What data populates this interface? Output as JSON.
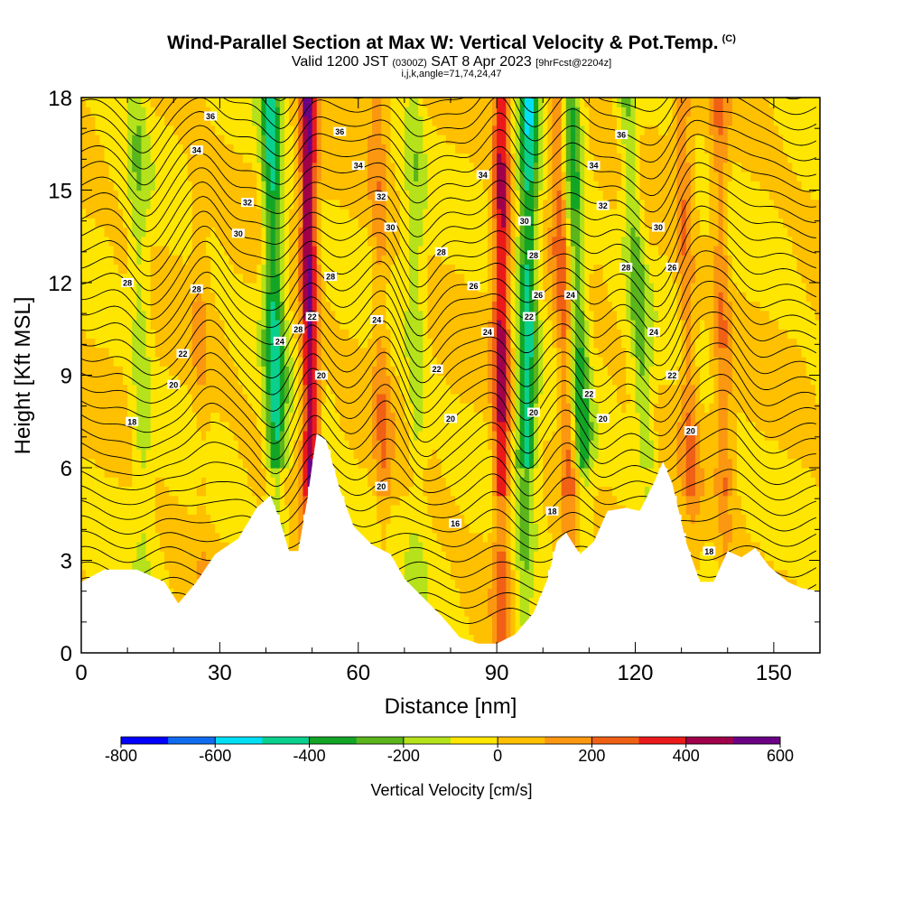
{
  "title": "Wind-Parallel Section at Max W: Vertical Velocity & Pot.Temp.",
  "copyright_mark": "(C)",
  "subtitle_main": "Valid 1200 JST",
  "subtitle_utc": "(0300Z)",
  "subtitle_date": "SAT 8 Apr 2023",
  "subtitle_fcst": "[9hrFcst@2204z]",
  "index_line": "i,j,k,angle=71,74,24,47",
  "chart_data": {
    "type": "heatmap",
    "xlabel": "Distance [nm]",
    "ylabel": "Height [Kft MSL]",
    "xlim": [
      0,
      160
    ],
    "ylim": [
      0,
      18
    ],
    "x_ticks": [
      0,
      30,
      60,
      90,
      120,
      150
    ],
    "y_ticks": [
      0,
      3,
      6,
      9,
      12,
      15,
      18
    ],
    "colorbar": {
      "label": "Vertical Velocity [cm/s]",
      "range": [
        -800,
        600
      ],
      "tick_values": [
        -800,
        -600,
        -400,
        -200,
        0,
        200,
        400,
        600
      ],
      "colors": [
        "#0000ff",
        "#0f6cf0",
        "#00dff5",
        "#0ad08e",
        "#13a526",
        "#5bb51c",
        "#b5e21a",
        "#ffe600",
        "#ffc000",
        "#fb9710",
        "#f06015",
        "#eb1a1a",
        "#a0004a",
        "#6b0085"
      ]
    },
    "updrafts": [
      {
        "x_base": 50,
        "x_top": 49,
        "w": 500
      },
      {
        "x_base": 91,
        "x_top": 91,
        "w": 420
      },
      {
        "x_base": 107,
        "x_top": 103,
        "w": 260
      },
      {
        "x_base": 66,
        "x_top": 64,
        "w": 150
      },
      {
        "x_base": 133,
        "x_top": 130,
        "w": 180
      },
      {
        "x_base": 140,
        "x_top": 138,
        "w": 180
      },
      {
        "x_base": 27,
        "x_top": 25,
        "w": 80
      }
    ],
    "downdrafts": [
      {
        "x_base": 43,
        "x_top": 41,
        "w": -420
      },
      {
        "x_base": 96,
        "x_top": 97,
        "w": -440
      },
      {
        "x_base": 110,
        "x_top": 106,
        "w": -320
      },
      {
        "x_base": 125,
        "x_top": 118,
        "w": -220
      },
      {
        "x_base": 73,
        "x_top": 72,
        "w": -150
      },
      {
        "x_base": 14,
        "x_top": 12,
        "w": -150
      }
    ],
    "terrain_height_kft": [
      {
        "x": 0,
        "h": 2.3
      },
      {
        "x": 5,
        "h": 2.7
      },
      {
        "x": 12,
        "h": 2.7
      },
      {
        "x": 18,
        "h": 2.3
      },
      {
        "x": 21,
        "h": 1.6
      },
      {
        "x": 25,
        "h": 2.3
      },
      {
        "x": 29,
        "h": 3.2
      },
      {
        "x": 34,
        "h": 3.7
      },
      {
        "x": 38,
        "h": 4.7
      },
      {
        "x": 41,
        "h": 5.1
      },
      {
        "x": 43,
        "h": 4.3
      },
      {
        "x": 45,
        "h": 3.3
      },
      {
        "x": 47,
        "h": 3.3
      },
      {
        "x": 49,
        "h": 5.0
      },
      {
        "x": 51,
        "h": 7.1
      },
      {
        "x": 53,
        "h": 6.9
      },
      {
        "x": 56,
        "h": 5.3
      },
      {
        "x": 59,
        "h": 4.1
      },
      {
        "x": 63,
        "h": 3.5
      },
      {
        "x": 67,
        "h": 3.2
      },
      {
        "x": 70,
        "h": 2.4
      },
      {
        "x": 74,
        "h": 1.8
      },
      {
        "x": 78,
        "h": 1.2
      },
      {
        "x": 82,
        "h": 0.5
      },
      {
        "x": 86,
        "h": 0.3
      },
      {
        "x": 90,
        "h": 0.3
      },
      {
        "x": 94,
        "h": 0.6
      },
      {
        "x": 98,
        "h": 1.3
      },
      {
        "x": 101,
        "h": 2.4
      },
      {
        "x": 103,
        "h": 3.6
      },
      {
        "x": 105,
        "h": 3.9
      },
      {
        "x": 108,
        "h": 3.2
      },
      {
        "x": 111,
        "h": 3.6
      },
      {
        "x": 114,
        "h": 4.6
      },
      {
        "x": 118,
        "h": 4.7
      },
      {
        "x": 121,
        "h": 4.6
      },
      {
        "x": 124,
        "h": 5.5
      },
      {
        "x": 126,
        "h": 6.2
      },
      {
        "x": 128,
        "h": 5.5
      },
      {
        "x": 131,
        "h": 3.6
      },
      {
        "x": 134,
        "h": 2.3
      },
      {
        "x": 137,
        "h": 2.3
      },
      {
        "x": 140,
        "h": 3.3
      },
      {
        "x": 143,
        "h": 3.1
      },
      {
        "x": 146,
        "h": 3.4
      },
      {
        "x": 149,
        "h": 2.8
      },
      {
        "x": 153,
        "h": 2.3
      },
      {
        "x": 156,
        "h": 2.1
      },
      {
        "x": 160,
        "h": 2.0
      }
    ],
    "isentrope_labels": [
      {
        "x": 28,
        "y": 17.4,
        "text": "36"
      },
      {
        "x": 56,
        "y": 16.9,
        "text": "36"
      },
      {
        "x": 117,
        "y": 16.8,
        "text": "36"
      },
      {
        "x": 25,
        "y": 16.3,
        "text": "34"
      },
      {
        "x": 60,
        "y": 15.8,
        "text": "34"
      },
      {
        "x": 87,
        "y": 15.5,
        "text": "34"
      },
      {
        "x": 111,
        "y": 15.8,
        "text": "34"
      },
      {
        "x": 36,
        "y": 14.6,
        "text": "32"
      },
      {
        "x": 65,
        "y": 14.8,
        "text": "32"
      },
      {
        "x": 113,
        "y": 14.5,
        "text": "32"
      },
      {
        "x": 34,
        "y": 13.6,
        "text": "30"
      },
      {
        "x": 67,
        "y": 13.8,
        "text": "30"
      },
      {
        "x": 96,
        "y": 14.0,
        "text": "30"
      },
      {
        "x": 125,
        "y": 13.8,
        "text": "30"
      },
      {
        "x": 10,
        "y": 12.0,
        "text": "28"
      },
      {
        "x": 25,
        "y": 11.8,
        "text": "28"
      },
      {
        "x": 54,
        "y": 12.2,
        "text": "28"
      },
      {
        "x": 78,
        "y": 13.0,
        "text": "28"
      },
      {
        "x": 98,
        "y": 12.9,
        "text": "28"
      },
      {
        "x": 118,
        "y": 12.5,
        "text": "28"
      },
      {
        "x": 128,
        "y": 12.5,
        "text": "26"
      },
      {
        "x": 85,
        "y": 11.9,
        "text": "26"
      },
      {
        "x": 99,
        "y": 11.6,
        "text": "26"
      },
      {
        "x": 106,
        "y": 11.6,
        "text": "24"
      },
      {
        "x": 43,
        "y": 10.1,
        "text": "24"
      },
      {
        "x": 64,
        "y": 10.8,
        "text": "24"
      },
      {
        "x": 88,
        "y": 10.4,
        "text": "24"
      },
      {
        "x": 124,
        "y": 10.4,
        "text": "24"
      },
      {
        "x": 47,
        "y": 10.5,
        "text": "28"
      },
      {
        "x": 50,
        "y": 10.9,
        "text": "22"
      },
      {
        "x": 97,
        "y": 10.9,
        "text": "22"
      },
      {
        "x": 22,
        "y": 9.7,
        "text": "22"
      },
      {
        "x": 77,
        "y": 9.2,
        "text": "22"
      },
      {
        "x": 128,
        "y": 9.0,
        "text": "22"
      },
      {
        "x": 110,
        "y": 8.4,
        "text": "22"
      },
      {
        "x": 20,
        "y": 8.7,
        "text": "20"
      },
      {
        "x": 52,
        "y": 9.0,
        "text": "20"
      },
      {
        "x": 80,
        "y": 7.6,
        "text": "20"
      },
      {
        "x": 98,
        "y": 7.8,
        "text": "20"
      },
      {
        "x": 113,
        "y": 7.6,
        "text": "20"
      },
      {
        "x": 132,
        "y": 7.2,
        "text": "20"
      },
      {
        "x": 65,
        "y": 5.4,
        "text": "20"
      },
      {
        "x": 11,
        "y": 7.5,
        "text": "18"
      },
      {
        "x": 102,
        "y": 4.6,
        "text": "18"
      },
      {
        "x": 81,
        "y": 4.2,
        "text": "16"
      },
      {
        "x": 136,
        "y": 3.3,
        "text": "18"
      }
    ]
  }
}
